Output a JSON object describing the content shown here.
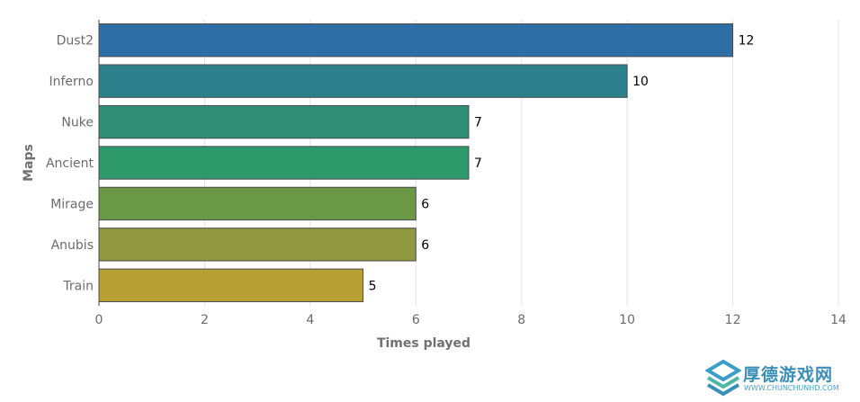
{
  "chart_data": {
    "type": "bar",
    "orientation": "horizontal",
    "categories": [
      "Dust2",
      "Inferno",
      "Nuke",
      "Ancient",
      "Mirage",
      "Anubis",
      "Train"
    ],
    "values": [
      12,
      10,
      7,
      7,
      6,
      6,
      5
    ],
    "colors": [
      "#2e6ea6",
      "#2b808c",
      "#2e8d74",
      "#2e9a6c",
      "#6a9845",
      "#90993e",
      "#b9a034"
    ],
    "xlabel": "Times played",
    "ylabel": "Maps",
    "xlim": [
      0,
      14
    ],
    "xticks": [
      "0",
      "2",
      "4",
      "6",
      "8",
      "10",
      "12",
      "14"
    ],
    "grid": true
  },
  "watermark": {
    "title": "厚德游戏网",
    "url": "WWW.CHUNCHUNHD.COM"
  }
}
